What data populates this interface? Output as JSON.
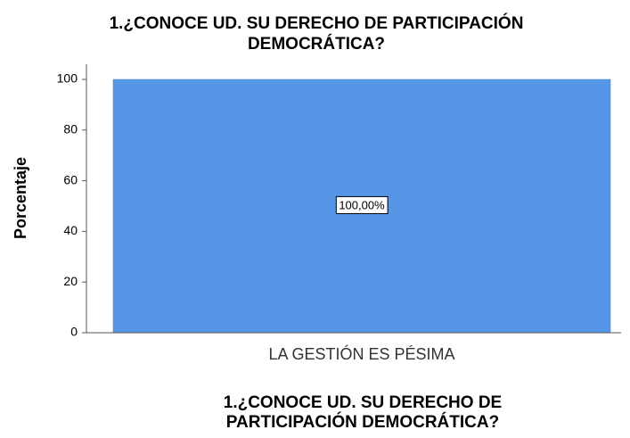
{
  "chart_data": {
    "type": "bar",
    "title": [
      "1.¿CONOCE UD. SU DERECHO DE PARTICIPACIÓN",
      "DEMOCRÁTICA?"
    ],
    "y_label": "Porcentaje",
    "x_label": [
      "1.¿CONOCE UD. SU DERECHO DE",
      "PARTICIPACIÓN DEMOCRÁTICA?"
    ],
    "categories": [
      "LA GESTIÓN ES PÉSIMA"
    ],
    "values": [
      100
    ],
    "value_labels": [
      "100,00%"
    ],
    "color": "#5596e6",
    "ylim": [
      0,
      100
    ],
    "yticks": [
      0,
      20,
      40,
      60,
      80,
      100
    ],
    "grid": false
  }
}
